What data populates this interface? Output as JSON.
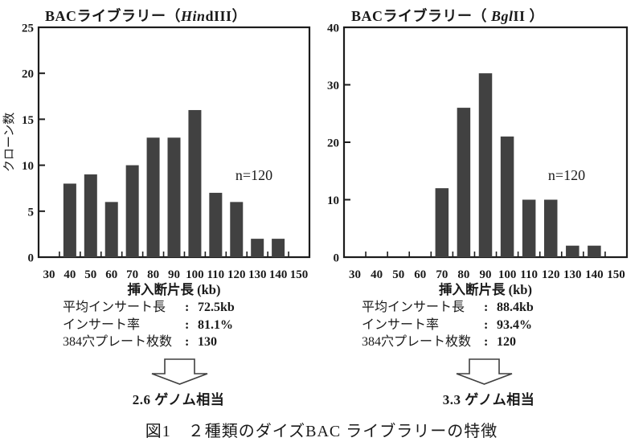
{
  "figure": {
    "caption": "図1　２種類のダイズBAC ライブラリーの特徴"
  },
  "chart_data": [
    {
      "type": "bar",
      "title": "BACライブラリー（HindIII）",
      "title_parts": {
        "prefix": "BACライブラリー（",
        "italic": "Hin",
        "suffix": "dIII）"
      },
      "categories": [
        "30",
        "40",
        "50",
        "60",
        "70",
        "80",
        "90",
        "100",
        "110",
        "120",
        "130",
        "140",
        "150"
      ],
      "values": [
        0,
        8,
        9,
        6,
        10,
        13,
        13,
        16,
        7,
        6,
        2,
        2,
        0
      ],
      "xlabel": "挿入断片長 (kb)",
      "ylabel": "クローン数",
      "ylim": [
        0,
        25
      ],
      "ytick_step": 5,
      "annotation": "n=120",
      "grid": false,
      "legend": "none",
      "bar_color": "#414141"
    },
    {
      "type": "bar",
      "title": "BACライブラリー（ BglII ）",
      "title_parts": {
        "prefix": "BACライブラリー（ ",
        "italic": "Bgl",
        "suffix": "II ）"
      },
      "categories": [
        "30",
        "40",
        "50",
        "60",
        "70",
        "80",
        "90",
        "100",
        "110",
        "120",
        "130",
        "140",
        "150"
      ],
      "values": [
        0,
        0,
        0,
        0,
        12,
        26,
        32,
        21,
        10,
        10,
        2,
        2,
        0
      ],
      "xlabel": "挿入断片長 (kb)",
      "ylabel": "",
      "ylim": [
        0,
        40
      ],
      "ytick_step": 10,
      "annotation": "n=120",
      "grid": false,
      "legend": "none",
      "bar_color": "#414141"
    }
  ],
  "stats_blocks": [
    {
      "rows": [
        {
          "label": "平均インサート長",
          "separator": ":",
          "value": "72.5kb"
        },
        {
          "label": "インサート率",
          "separator": ":",
          "value": "81.1%"
        },
        {
          "label": "384穴プレート枚数",
          "separator": ":",
          "value": "130"
        }
      ],
      "genome_label": "2.6 ゲノム相当"
    },
    {
      "rows": [
        {
          "label": "平均インサート長",
          "separator": ":",
          "value": "88.4kb"
        },
        {
          "label": "インサート率",
          "separator": ":",
          "value": "93.4%"
        },
        {
          "label": "384穴プレート枚数",
          "separator": ":",
          "value": "120"
        }
      ],
      "genome_label": "3.3 ゲノム相当"
    }
  ],
  "colors": {
    "bar": "#414141",
    "axis": "#1c1c1c",
    "text": "#1a1a1a",
    "arrow_outline": "#3f3f3f"
  }
}
